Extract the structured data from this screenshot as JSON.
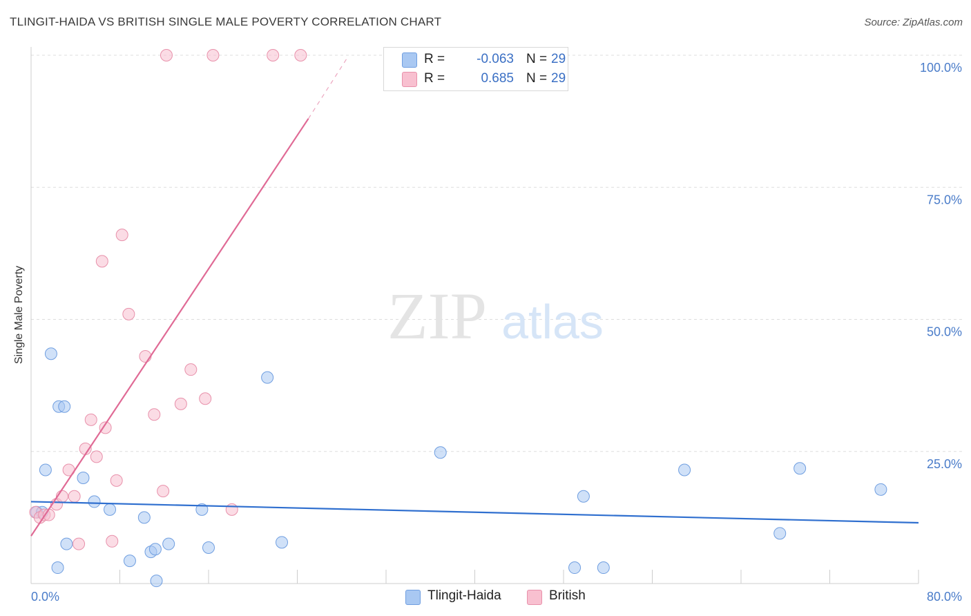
{
  "header": {
    "title": "TLINGIT-HAIDA VS BRITISH SINGLE MALE POVERTY CORRELATION CHART",
    "source": "Source: ZipAtlas.com"
  },
  "watermark": {
    "zip": "ZIP",
    "atlas": "atlas"
  },
  "legend": {
    "rows": [
      {
        "r_label": "R =",
        "r_value": "-0.063",
        "n_label": "N =",
        "n_value": "29",
        "color": "#a9c8f2",
        "border": "#6f9ee0"
      },
      {
        "r_label": "R =",
        "r_value": "0.685",
        "n_label": "N =",
        "n_value": "29",
        "color": "#f8c0d0",
        "border": "#e890aa"
      }
    ]
  },
  "bottom_legend": [
    {
      "label": "Tlingit-Haida",
      "color": "#a9c8f2",
      "border": "#6f9ee0"
    },
    {
      "label": "British",
      "color": "#f8c0d0",
      "border": "#e890aa"
    }
  ],
  "chart_data": {
    "type": "scatter",
    "title": "TLINGIT-HAIDA VS BRITISH SINGLE MALE POVERTY CORRELATION CHART",
    "xlabel": "",
    "ylabel": "Single Male Poverty",
    "xlim": [
      0,
      80
    ],
    "ylim": [
      0,
      100
    ],
    "x_tick_labels": [
      "0.0%",
      "80.0%"
    ],
    "y_ticks": [
      25,
      50,
      75,
      100
    ],
    "y_tick_labels": [
      "25.0%",
      "50.0%",
      "75.0%",
      "100.0%"
    ],
    "grid": true,
    "series": [
      {
        "name": "Tlingit-Haida",
        "color": "#6f9ee0",
        "fill": "#a9c8f2",
        "points": [
          [
            0.5,
            13.5
          ],
          [
            1.0,
            13.5
          ],
          [
            1.3,
            21.5
          ],
          [
            1.8,
            43.5
          ],
          [
            2.5,
            33.5
          ],
          [
            3.0,
            33.5
          ],
          [
            2.4,
            3.0
          ],
          [
            3.2,
            7.5
          ],
          [
            4.7,
            20.0
          ],
          [
            5.7,
            15.5
          ],
          [
            7.1,
            14.0
          ],
          [
            8.9,
            4.3
          ],
          [
            10.2,
            12.5
          ],
          [
            10.8,
            6.0
          ],
          [
            11.2,
            6.5
          ],
          [
            11.3,
            0.5
          ],
          [
            12.4,
            7.5
          ],
          [
            15.4,
            14.0
          ],
          [
            16.0,
            6.8
          ],
          [
            21.3,
            39.0
          ],
          [
            22.6,
            7.8
          ],
          [
            36.9,
            24.8
          ],
          [
            49.0,
            3.0
          ],
          [
            49.8,
            16.5
          ],
          [
            51.6,
            3.0
          ],
          [
            58.9,
            21.5
          ],
          [
            67.5,
            9.5
          ],
          [
            69.3,
            21.8
          ],
          [
            76.6,
            17.8
          ]
        ]
      },
      {
        "name": "British",
        "color": "#e890aa",
        "fill": "#f8c0d0",
        "points": [
          [
            0.4,
            13.5
          ],
          [
            0.8,
            12.5
          ],
          [
            1.2,
            13.0
          ],
          [
            1.6,
            13.0
          ],
          [
            2.3,
            15.0
          ],
          [
            2.8,
            16.5
          ],
          [
            3.4,
            21.5
          ],
          [
            3.9,
            16.5
          ],
          [
            4.3,
            7.5
          ],
          [
            4.9,
            25.5
          ],
          [
            5.4,
            31.0
          ],
          [
            5.9,
            24.0
          ],
          [
            6.4,
            61.0
          ],
          [
            6.7,
            29.5
          ],
          [
            7.3,
            8.0
          ],
          [
            7.7,
            19.5
          ],
          [
            8.2,
            66.0
          ],
          [
            8.8,
            51.0
          ],
          [
            10.3,
            43.0
          ],
          [
            11.1,
            32.0
          ],
          [
            11.9,
            17.5
          ],
          [
            12.2,
            100.0
          ],
          [
            13.5,
            34.0
          ],
          [
            14.4,
            40.5
          ],
          [
            15.7,
            35.0
          ],
          [
            16.4,
            100.0
          ],
          [
            18.1,
            14.0
          ],
          [
            21.8,
            100.0
          ],
          [
            24.3,
            100.0
          ]
        ]
      }
    ],
    "trend_lines": [
      {
        "series": "Tlingit-Haida",
        "color": "#2f6fcf",
        "from": [
          0,
          15.5
        ],
        "to": [
          80,
          11.5
        ]
      },
      {
        "series": "British",
        "color": "#e06a95",
        "from": [
          0,
          9.0
        ],
        "to": [
          25.0,
          88.0
        ],
        "dashed_to": [
          28.5,
          99.5
        ]
      }
    ]
  }
}
